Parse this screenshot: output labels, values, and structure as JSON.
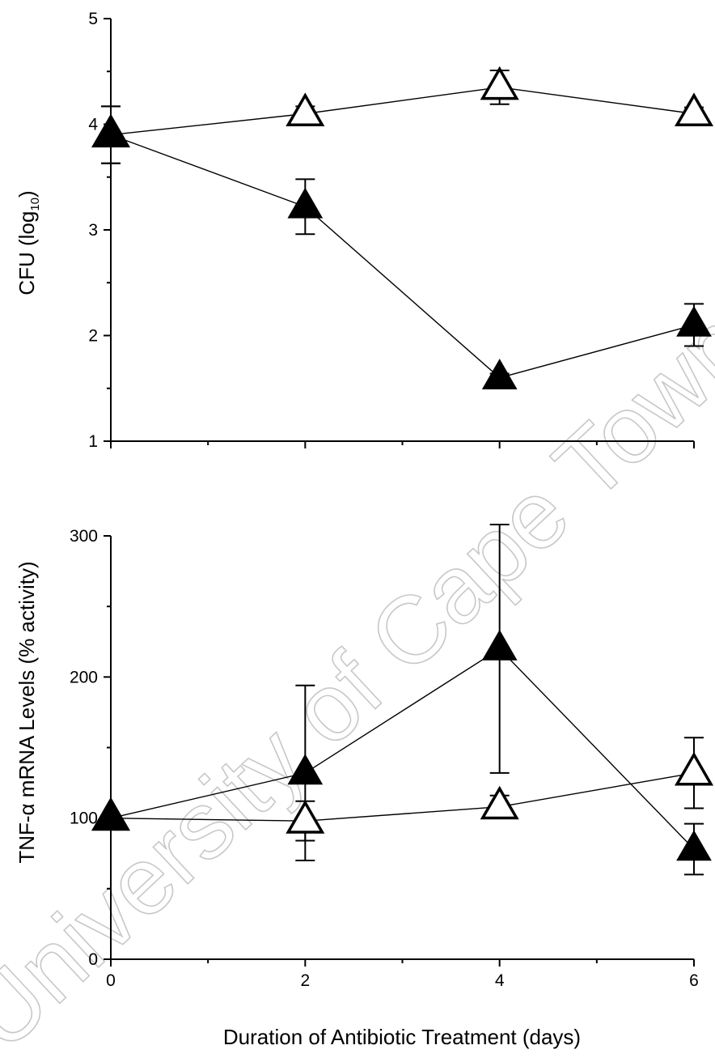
{
  "watermark": "University of Cape Town",
  "xlabel": "Duration of Antibiotic Treatment (days)",
  "chart_data": [
    {
      "type": "line",
      "panel": "top",
      "ylabel_main": "CFU (log",
      "ylabel_sub": "10",
      "ylabel_end": ")",
      "xlim": [
        0,
        6
      ],
      "ylim": [
        1,
        5
      ],
      "xticks": [
        0,
        2,
        4,
        6
      ],
      "yticks": [
        1,
        2,
        3,
        4,
        5
      ],
      "tick_labels_x": [],
      "tick_labels_y": [
        "1",
        "2",
        "3",
        "4",
        "5"
      ],
      "grid": false,
      "series": [
        {
          "marker": "open-triangle",
          "x": [
            0,
            2,
            4,
            6
          ],
          "y": [
            3.9,
            4.1,
            4.35,
            4.1
          ],
          "err": [
            0.27,
            0.07,
            0.16,
            0.06
          ]
        },
        {
          "marker": "filled-triangle",
          "x": [
            0,
            2,
            4,
            6
          ],
          "y": [
            3.9,
            3.22,
            1.6,
            2.1
          ],
          "err": [
            0.27,
            0.26,
            0.04,
            0.2
          ]
        }
      ]
    },
    {
      "type": "line",
      "panel": "bottom",
      "ylabel": "TNF-α mRNA Levels (% activity)",
      "xlim": [
        0,
        6
      ],
      "ylim": [
        0,
        300
      ],
      "xticks": [
        0,
        2,
        4,
        6
      ],
      "yticks": [
        0,
        100,
        200,
        300
      ],
      "tick_labels_x": [
        "0",
        "2",
        "4",
        "6"
      ],
      "tick_labels_y": [
        "0",
        "100",
        "200",
        "300"
      ],
      "grid": false,
      "series": [
        {
          "marker": "open-triangle",
          "x": [
            0,
            2,
            4,
            6
          ],
          "y": [
            100,
            98,
            108,
            132
          ],
          "err": [
            0,
            14,
            8,
            25
          ]
        },
        {
          "marker": "filled-triangle",
          "x": [
            0,
            2,
            4,
            6
          ],
          "y": [
            100,
            132,
            220,
            78
          ],
          "err": [
            0,
            62,
            88,
            18
          ]
        }
      ]
    }
  ]
}
